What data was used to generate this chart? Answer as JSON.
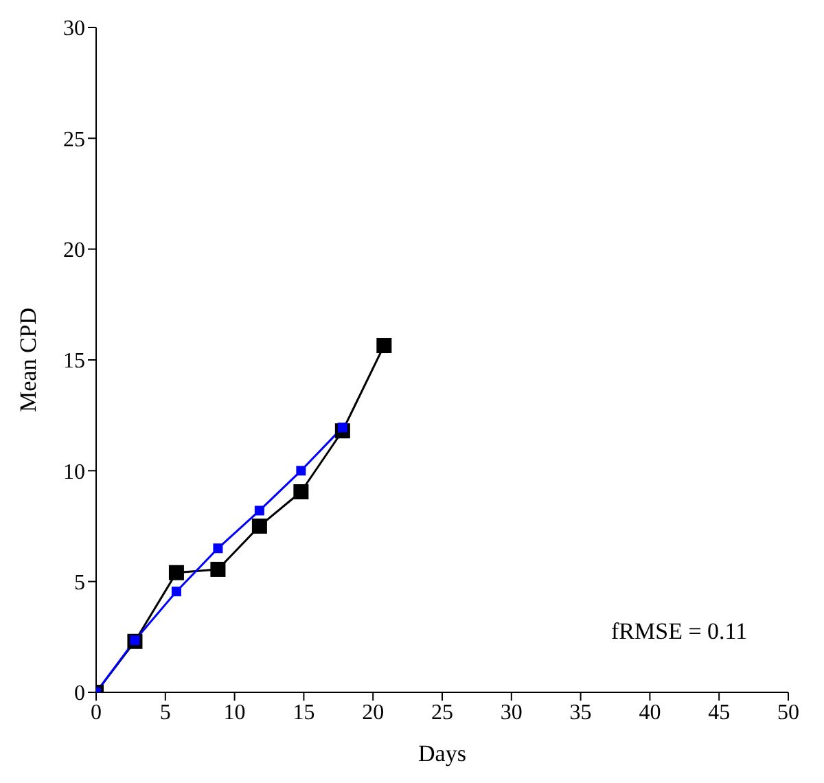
{
  "chart_data": {
    "type": "line",
    "xlabel": "Days",
    "ylabel": "Mean CPD",
    "marker": "square",
    "grid": false,
    "legend": false,
    "series": [
      {
        "color": "#000000",
        "x": [
          0,
          2.8,
          5.8,
          8.8,
          11.8,
          14.8,
          17.8,
          20.8
        ],
        "values": [
          0,
          2.3,
          5.4,
          5.55,
          7.5,
          9.05,
          11.8,
          15.65
        ]
      },
      {
        "color": "#0000ff",
        "x": [
          0,
          2.8,
          5.8,
          8.8,
          11.8,
          14.8,
          17.8
        ],
        "values": [
          0,
          2.35,
          4.55,
          6.5,
          8.2,
          10,
          11.95
        ]
      }
    ],
    "xlim": [
      0,
      50
    ],
    "xticks": [
      0,
      5,
      10,
      15,
      20,
      25,
      30,
      35,
      40,
      45,
      50
    ],
    "ylim": [
      0,
      30
    ],
    "yticks": [
      0,
      5,
      10,
      15,
      20,
      25,
      30
    ],
    "annotations": [
      "fRMSE = 0.11"
    ]
  }
}
